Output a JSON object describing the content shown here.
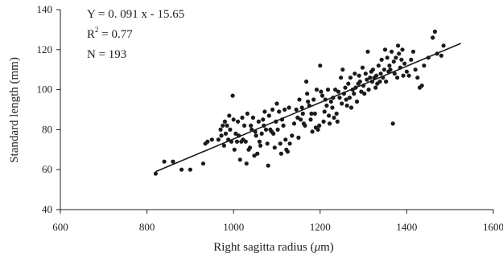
{
  "chart_data": {
    "type": "scatter",
    "title": "",
    "xlabel_prefix": "Right sagitta radius (",
    "xlabel_unit": "μ",
    "xlabel_suffix": "m)",
    "ylabel": "Standard length (mm)",
    "xlim": [
      600,
      1600
    ],
    "ylim": [
      40,
      140
    ],
    "xticks": [
      600,
      800,
      1000,
      1200,
      1400,
      1600
    ],
    "yticks": [
      40,
      60,
      80,
      100,
      120,
      140
    ],
    "grid": false,
    "legend": "none",
    "point_color": "#1a1a1a",
    "line_color": "#1a1a1a",
    "annotations": {
      "equation": "Y = 0. 091 x - 15.65",
      "r2_base": "R",
      "r2_sup": "2",
      "r2_rest": " = 0.77",
      "n": "N = 193"
    },
    "trendline": {
      "slope": 0.091,
      "intercept": -15.65,
      "x_start": 820,
      "x_end": 1525
    },
    "points": [
      [
        820,
        58
      ],
      [
        840,
        64
      ],
      [
        860,
        64
      ],
      [
        880,
        60
      ],
      [
        900,
        60
      ],
      [
        930,
        63
      ],
      [
        935,
        73
      ],
      [
        940,
        74
      ],
      [
        950,
        75
      ],
      [
        965,
        75
      ],
      [
        970,
        80
      ],
      [
        972,
        77
      ],
      [
        975,
        82
      ],
      [
        978,
        72
      ],
      [
        980,
        84
      ],
      [
        982,
        78
      ],
      [
        985,
        82
      ],
      [
        988,
        75
      ],
      [
        990,
        87
      ],
      [
        992,
        80
      ],
      [
        995,
        74
      ],
      [
        998,
        97
      ],
      [
        1000,
        85
      ],
      [
        1002,
        70
      ],
      [
        1005,
        78
      ],
      [
        1008,
        74
      ],
      [
        1010,
        84
      ],
      [
        1012,
        77
      ],
      [
        1015,
        65
      ],
      [
        1018,
        74
      ],
      [
        1020,
        86
      ],
      [
        1022,
        75
      ],
      [
        1025,
        82
      ],
      [
        1028,
        74
      ],
      [
        1030,
        63
      ],
      [
        1032,
        88
      ],
      [
        1035,
        70
      ],
      [
        1038,
        71
      ],
      [
        1040,
        82
      ],
      [
        1042,
        80
      ],
      [
        1045,
        86
      ],
      [
        1048,
        67
      ],
      [
        1050,
        79
      ],
      [
        1052,
        77
      ],
      [
        1055,
        68
      ],
      [
        1058,
        84
      ],
      [
        1060,
        74
      ],
      [
        1062,
        72
      ],
      [
        1065,
        78
      ],
      [
        1068,
        85
      ],
      [
        1070,
        82
      ],
      [
        1072,
        89
      ],
      [
        1075,
        80
      ],
      [
        1078,
        73
      ],
      [
        1080,
        62
      ],
      [
        1082,
        87
      ],
      [
        1085,
        80
      ],
      [
        1088,
        79
      ],
      [
        1090,
        90
      ],
      [
        1092,
        78
      ],
      [
        1095,
        71
      ],
      [
        1098,
        84
      ],
      [
        1100,
        93
      ],
      [
        1102,
        80
      ],
      [
        1105,
        89
      ],
      [
        1108,
        73
      ],
      [
        1110,
        68
      ],
      [
        1112,
        85
      ],
      [
        1115,
        82
      ],
      [
        1118,
        90
      ],
      [
        1120,
        75
      ],
      [
        1122,
        70
      ],
      [
        1125,
        69
      ],
      [
        1128,
        91
      ],
      [
        1130,
        73
      ],
      [
        1135,
        77
      ],
      [
        1140,
        83
      ],
      [
        1145,
        90
      ],
      [
        1148,
        86
      ],
      [
        1150,
        76
      ],
      [
        1152,
        95
      ],
      [
        1155,
        85
      ],
      [
        1158,
        91
      ],
      [
        1160,
        88
      ],
      [
        1162,
        83
      ],
      [
        1165,
        82
      ],
      [
        1168,
        104
      ],
      [
        1170,
        98
      ],
      [
        1172,
        94
      ],
      [
        1175,
        92
      ],
      [
        1178,
        85
      ],
      [
        1180,
        88
      ],
      [
        1182,
        79
      ],
      [
        1185,
        95
      ],
      [
        1188,
        88
      ],
      [
        1190,
        81
      ],
      [
        1192,
        100
      ],
      [
        1195,
        80
      ],
      [
        1198,
        82
      ],
      [
        1200,
        112
      ],
      [
        1202,
        99
      ],
      [
        1205,
        97
      ],
      [
        1208,
        84
      ],
      [
        1210,
        89
      ],
      [
        1212,
        95
      ],
      [
        1215,
        92
      ],
      [
        1218,
        100
      ],
      [
        1220,
        87
      ],
      [
        1222,
        83
      ],
      [
        1225,
        94
      ],
      [
        1228,
        91
      ],
      [
        1230,
        96
      ],
      [
        1232,
        86
      ],
      [
        1235,
        100
      ],
      [
        1238,
        88
      ],
      [
        1240,
        84
      ],
      [
        1242,
        99
      ],
      [
        1245,
        96
      ],
      [
        1248,
        106
      ],
      [
        1250,
        93
      ],
      [
        1252,
        110
      ],
      [
        1255,
        98
      ],
      [
        1258,
        101
      ],
      [
        1260,
        95
      ],
      [
        1262,
        92
      ],
      [
        1265,
        103
      ],
      [
        1268,
        96
      ],
      [
        1270,
        106
      ],
      [
        1272,
        91
      ],
      [
        1275,
        100
      ],
      [
        1278,
        98
      ],
      [
        1280,
        108
      ],
      [
        1282,
        101
      ],
      [
        1285,
        94
      ],
      [
        1288,
        103
      ],
      [
        1290,
        107
      ],
      [
        1292,
        104
      ],
      [
        1295,
        99
      ],
      [
        1298,
        111
      ],
      [
        1300,
        102
      ],
      [
        1302,
        98
      ],
      [
        1305,
        108
      ],
      [
        1308,
        105
      ],
      [
        1310,
        119
      ],
      [
        1312,
        100
      ],
      [
        1315,
        106
      ],
      [
        1318,
        109
      ],
      [
        1320,
        104
      ],
      [
        1322,
        110
      ],
      [
        1325,
        106
      ],
      [
        1328,
        101
      ],
      [
        1330,
        107
      ],
      [
        1332,
        103
      ],
      [
        1335,
        112
      ],
      [
        1338,
        104
      ],
      [
        1340,
        108
      ],
      [
        1342,
        115
      ],
      [
        1345,
        106
      ],
      [
        1348,
        110
      ],
      [
        1350,
        120
      ],
      [
        1352,
        104
      ],
      [
        1355,
        116
      ],
      [
        1358,
        109
      ],
      [
        1360,
        112
      ],
      [
        1362,
        110
      ],
      [
        1365,
        119
      ],
      [
        1368,
        83
      ],
      [
        1370,
        114
      ],
      [
        1372,
        108
      ],
      [
        1375,
        116
      ],
      [
        1378,
        106
      ],
      [
        1380,
        122
      ],
      [
        1382,
        118
      ],
      [
        1385,
        111
      ],
      [
        1388,
        115
      ],
      [
        1390,
        120
      ],
      [
        1392,
        107
      ],
      [
        1395,
        113
      ],
      [
        1400,
        109
      ],
      [
        1405,
        107
      ],
      [
        1410,
        115
      ],
      [
        1415,
        119
      ],
      [
        1420,
        110
      ],
      [
        1425,
        106
      ],
      [
        1430,
        101
      ],
      [
        1435,
        102
      ],
      [
        1440,
        112
      ],
      [
        1450,
        116
      ],
      [
        1460,
        126
      ],
      [
        1465,
        129
      ],
      [
        1470,
        118
      ],
      [
        1480,
        117
      ],
      [
        1485,
        122
      ]
    ]
  }
}
